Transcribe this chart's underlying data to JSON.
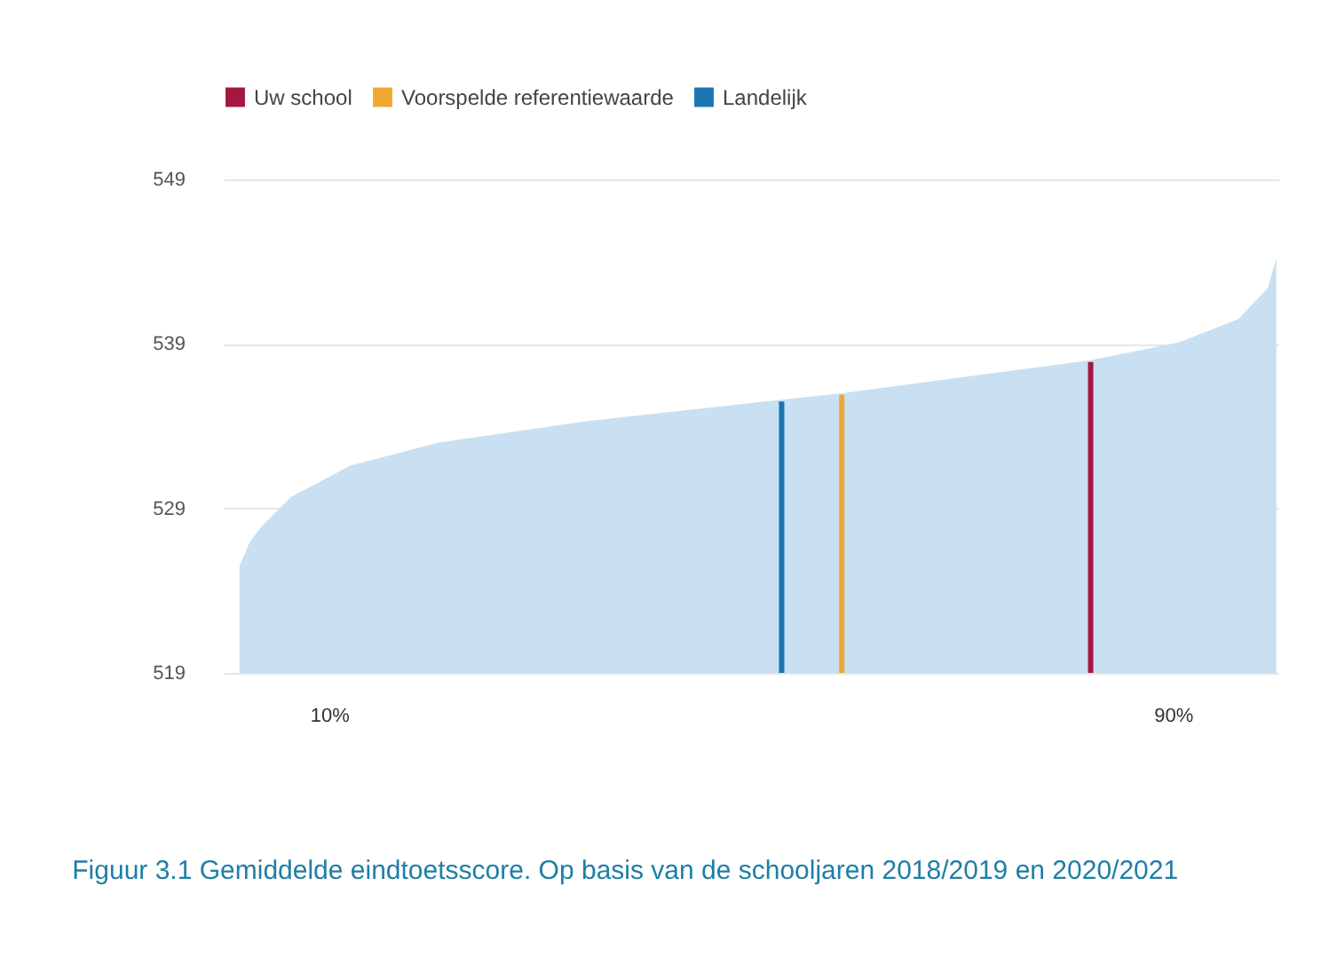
{
  "chart_data": {
    "type": "area",
    "title": "Figuur 3.1 Gemiddelde eindtoetsscore. Op basis van de schooljaren 2018/2019 en 2020/2021",
    "xlim": [
      0,
      100
    ],
    "xticks": [
      {
        "value": 10,
        "label": "10%"
      },
      {
        "value": 90,
        "label": "90%"
      }
    ],
    "ylim": [
      519,
      549
    ],
    "yticks": [
      519,
      529,
      539,
      549
    ],
    "grid": "y",
    "legend": "top left",
    "series": [
      {
        "color": "#c8e0f1",
        "x": [
          1.5,
          2.5,
          3.6,
          6.4,
          12.0,
          20.4,
          34.4,
          52.9,
          58.6,
          82.2,
          90.6,
          96.2,
          99.0,
          99.8
        ],
        "values": [
          525.5,
          527.0,
          527.9,
          529.7,
          531.6,
          533.0,
          534.3,
          535.6,
          536.0,
          538.0,
          539.1,
          540.5,
          542.4,
          544.2
        ]
      },
      {
        "name": "Uw school",
        "type": "bar",
        "color": "#a5173f",
        "x": [
          82.2
        ],
        "values": [
          537.9
        ]
      },
      {
        "name": "Voorspelde referentiewaarde",
        "type": "bar",
        "color": "#f0a830",
        "x": [
          58.6
        ],
        "values": [
          535.9
        ]
      },
      {
        "name": "Landelijk",
        "type": "bar",
        "color": "#1a76b0",
        "x": [
          52.9
        ],
        "values": [
          535.5
        ]
      }
    ]
  }
}
